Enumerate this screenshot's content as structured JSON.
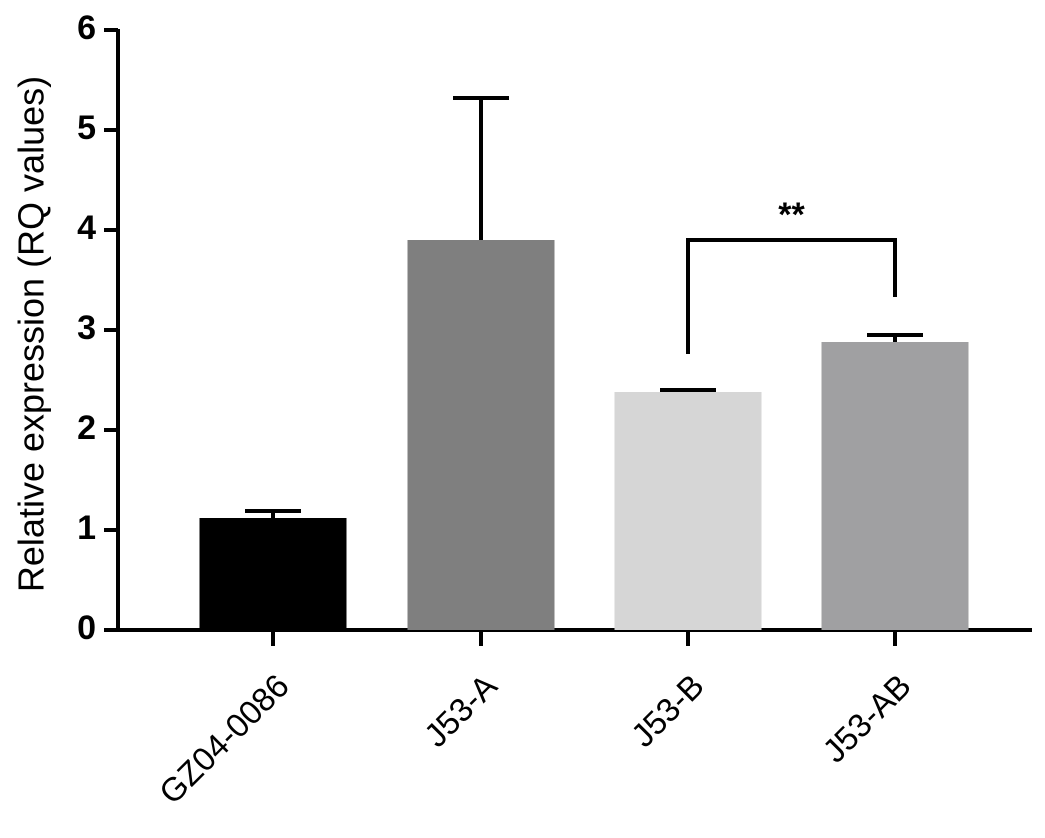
{
  "chart_data": {
    "type": "bar",
    "title": "",
    "xlabel": "",
    "ylabel": "Relative expression (RQ values)",
    "ylim": [
      0,
      6
    ],
    "yticks": [
      0,
      1,
      2,
      3,
      4,
      5,
      6
    ],
    "ytick_labels": [
      "0",
      "1",
      "2",
      "3",
      "4",
      "5",
      "6"
    ],
    "categories": [
      "GZ04-0086",
      "J53-A",
      "J53-B",
      "J53-AB"
    ],
    "values": [
      1.12,
      3.9,
      2.38,
      2.88
    ],
    "errors": [
      0.07,
      1.42,
      0.02,
      0.07
    ],
    "colors": [
      "#000000",
      "#7f7f7f",
      "#d6d6d6",
      "#a0a0a2"
    ],
    "grid": false,
    "legend": "none",
    "annotations": [
      {
        "text": "**",
        "from": "J53-B",
        "to": "J53-AB",
        "level": 3.9
      }
    ]
  }
}
